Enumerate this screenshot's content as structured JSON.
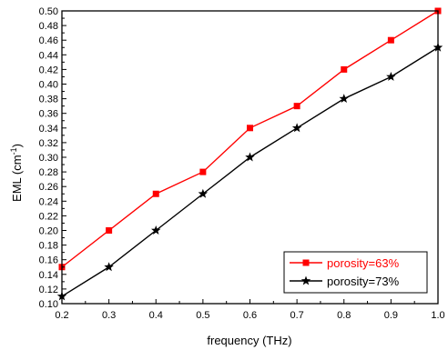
{
  "chart_data": {
    "type": "line",
    "xlabel": "frequency (THz)",
    "ylabel": "EML (cm",
    "ylabel_sup": "-1",
    "ylabel_tail": ")",
    "xlim": [
      0.2,
      1.0
    ],
    "ylim": [
      0.1,
      0.5
    ],
    "xticks": [
      0.2,
      0.3,
      0.4,
      0.5,
      0.6,
      0.7,
      0.8,
      0.9,
      1.0
    ],
    "xtick_labels": [
      "0.2",
      "0.3",
      "0.4",
      "0.5",
      "0.6",
      "0.7",
      "0.8",
      "0.9",
      "1.0"
    ],
    "yticks": [
      0.1,
      0.12,
      0.14,
      0.16,
      0.18,
      0.2,
      0.22,
      0.24,
      0.26,
      0.28,
      0.3,
      0.32,
      0.34,
      0.36,
      0.38,
      0.4,
      0.42,
      0.44,
      0.46,
      0.48,
      0.5
    ],
    "ytick_labels": [
      "0.10",
      "0.12",
      "0.14",
      "0.16",
      "0.18",
      "0.20",
      "0.22",
      "0.24",
      "0.26",
      "0.28",
      "0.30",
      "0.32",
      "0.34",
      "0.36",
      "0.38",
      "0.40",
      "0.42",
      "0.44",
      "0.46",
      "0.48",
      "0.50"
    ],
    "grid": false,
    "legend_position": "bottom-right",
    "x": [
      0.2,
      0.3,
      0.4,
      0.5,
      0.6,
      0.7,
      0.8,
      0.9,
      1.0
    ],
    "series": [
      {
        "name": "porosity=63%",
        "color": "#ff0000",
        "marker": "square",
        "values": [
          0.15,
          0.2,
          0.25,
          0.28,
          0.34,
          0.37,
          0.42,
          0.46,
          0.5
        ]
      },
      {
        "name": "porosity=73%",
        "color": "#000000",
        "marker": "star",
        "values": [
          0.11,
          0.15,
          0.2,
          0.25,
          0.3,
          0.34,
          0.38,
          0.41,
          0.45
        ]
      }
    ]
  }
}
